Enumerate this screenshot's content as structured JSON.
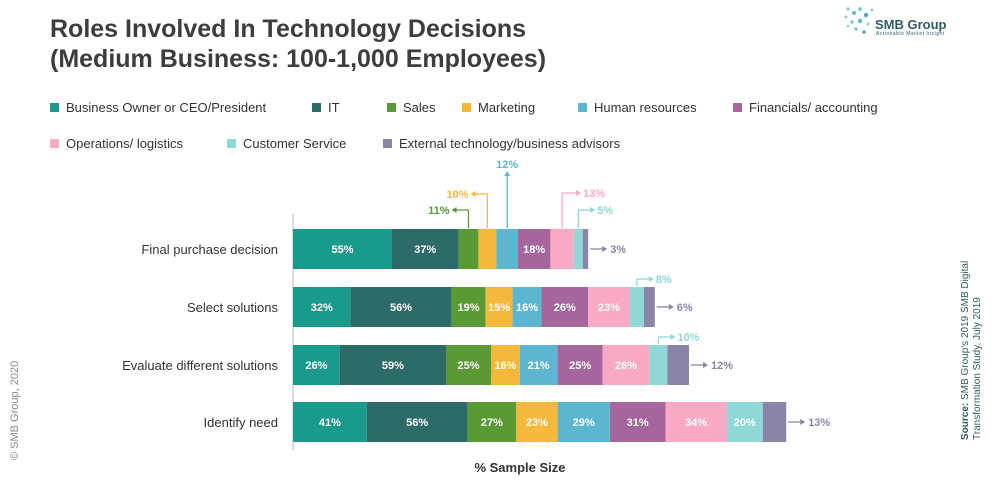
{
  "title_line1": "Roles Involved In Technology Decisions",
  "title_line2": "(Medium Business: 100-1,000 Employees)",
  "logo_text": "SMB Group",
  "logo_sub": "Actionable Market Insight",
  "copyright": "© SMB Group, 2020",
  "source_label": "Source:",
  "source_line1": " SMB Group's 2019 SMB Digital",
  "source_line2": "Transformation Study, July 2019",
  "chart_data": {
    "type": "bar",
    "orientation": "horizontal",
    "stacked": true,
    "xlabel": "% Sample Size",
    "categories": [
      "Final purchase decision",
      "Select solutions",
      "Evaluate different solutions",
      "Identify need"
    ],
    "series": [
      {
        "name": "Business Owner or CEO/President",
        "color": "#1a9a8a",
        "values": [
          55,
          32,
          26,
          41
        ]
      },
      {
        "name": "IT",
        "color": "#2c6b68",
        "values": [
          37,
          56,
          59,
          56
        ]
      },
      {
        "name": "Sales",
        "color": "#5a9a34",
        "values": [
          11,
          19,
          25,
          27
        ]
      },
      {
        "name": "Marketing",
        "color": "#f6b83a",
        "values": [
          10,
          15,
          16,
          23
        ]
      },
      {
        "name": "Human resources",
        "color": "#5db6cf",
        "values": [
          12,
          16,
          21,
          29
        ]
      },
      {
        "name": "Financials/ accounting",
        "color": "#a5659d",
        "values": [
          18,
          26,
          25,
          31
        ]
      },
      {
        "name": "Operations/ logistics",
        "color": "#f9a9c4",
        "values": [
          13,
          23,
          26,
          34
        ]
      },
      {
        "name": "Customer Service",
        "color": "#8fd8d6",
        "values": [
          5,
          8,
          10,
          20
        ]
      },
      {
        "name": "External technology/business advisors",
        "color": "#8a85a8",
        "values": [
          3,
          6,
          12,
          13
        ]
      }
    ],
    "value_labels": "percent",
    "grid": false,
    "legend_position": "top"
  }
}
